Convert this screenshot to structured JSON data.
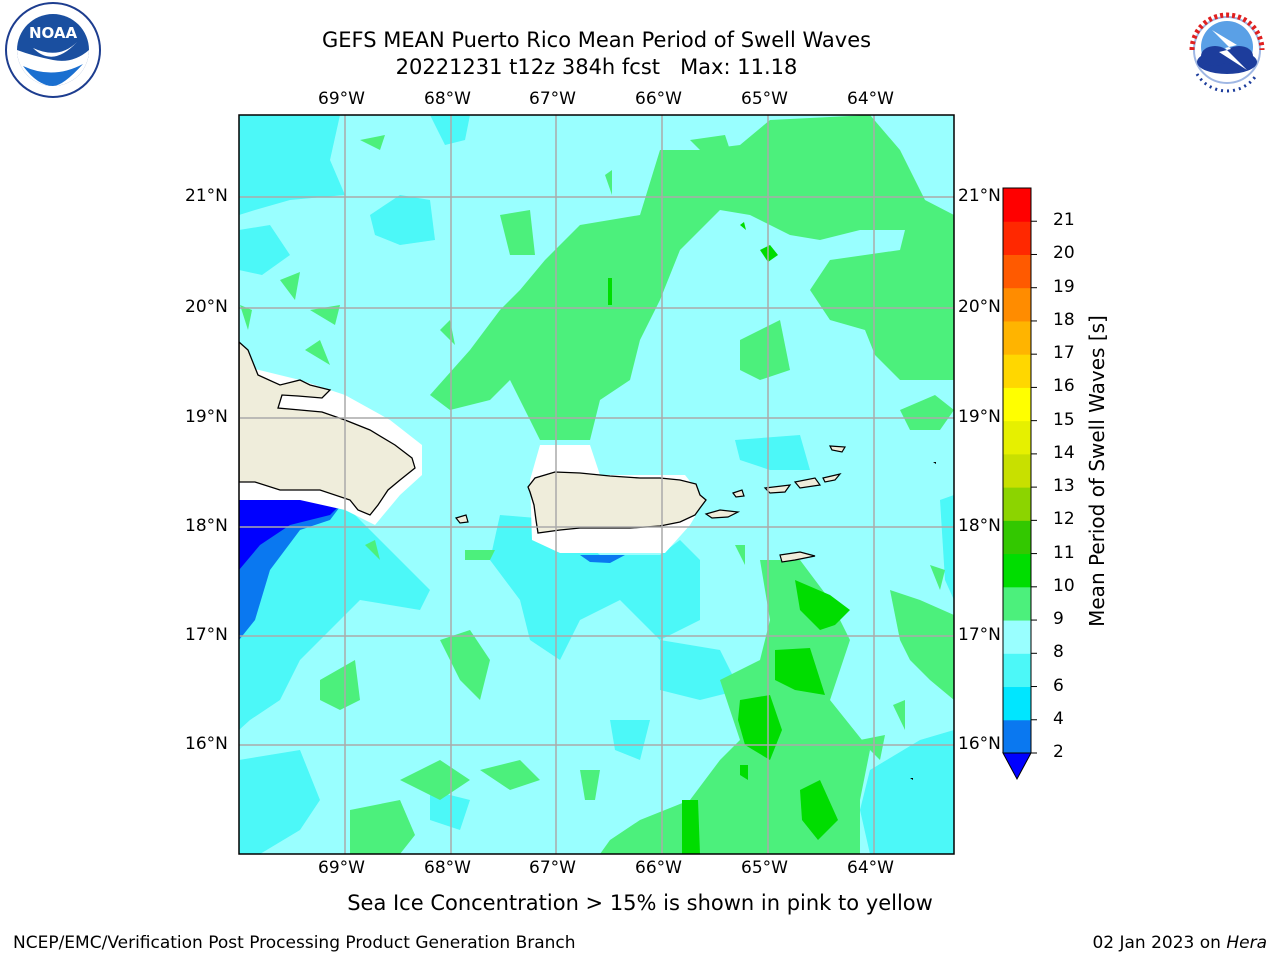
{
  "title": {
    "line1": "GEFS MEAN Puerto Rico Mean Period of Swell Waves",
    "line2": "20221231 t12z 384h fcst",
    "max_label": "Max: 11.18"
  },
  "map": {
    "lon_labels": [
      "69°W",
      "68°W",
      "67°W",
      "66°W",
      "65°W",
      "64°W"
    ],
    "lat_labels": [
      "21°N",
      "20°N",
      "19°N",
      "18°N",
      "17°N",
      "16°N"
    ],
    "land_color": "#efeddb",
    "field_colors": {
      "c4_6": "#00ffff",
      "c6_8": "#4cf8f8",
      "c8_9": "#99ffff",
      "c9_10": "#4cf07c",
      "c10_11": "#00dd00",
      "c2_4": "#0070ff",
      "below_2": "#0000ff"
    }
  },
  "colorbar": {
    "label": "Mean Period of Swell Waves [s]",
    "ticks": [
      "2",
      "4",
      "6",
      "8",
      "9",
      "10",
      "11",
      "12",
      "13",
      "14",
      "15",
      "16",
      "17",
      "18",
      "19",
      "20",
      "21"
    ],
    "colors": [
      "#0a78f0",
      "#00e6ff",
      "#4cf8f8",
      "#99ffff",
      "#4cf07c",
      "#00dd00",
      "#33c800",
      "#8cd400",
      "#c8e000",
      "#e6f000",
      "#ffff00",
      "#ffd700",
      "#ffb400",
      "#ff8c00",
      "#ff5a00",
      "#ff2800",
      "#ff0000"
    ],
    "extend_color": "#0000ff"
  },
  "subtitle": "Sea Ice Concentration > 15% is shown in pink to yellow",
  "footer": {
    "left": "NCEP/EMC/Verification Post Processing Product Generation Branch",
    "date": "02 Jan 2023 on",
    "machine": "Hera"
  },
  "logos": {
    "noaa_text": "NOAA",
    "nws_text": "NATIONAL WEATHER SERVICE"
  }
}
